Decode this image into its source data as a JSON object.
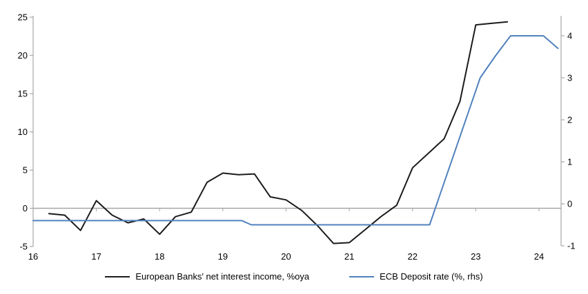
{
  "chart_data": {
    "type": "line",
    "title": "",
    "xlabel": "",
    "ylabel_left": "",
    "ylabel_right": "",
    "grid": "zero-line-only",
    "legend_position": "bottom-center",
    "x_axis": {
      "ticks": [
        "16",
        "17",
        "18",
        "19",
        "20",
        "21",
        "22",
        "23",
        "24"
      ],
      "tick_values": [
        16,
        17,
        18,
        19,
        20,
        21,
        22,
        23,
        24
      ],
      "range": [
        16,
        24.4
      ]
    },
    "left_axis": {
      "ticks": [
        "25",
        "20",
        "15",
        "10",
        "5",
        "0",
        "-5"
      ],
      "tick_values": [
        25,
        20,
        15,
        10,
        5,
        0,
        -5
      ],
      "range": [
        -5,
        25
      ]
    },
    "right_axis": {
      "ticks": [
        "4",
        "3",
        "2",
        "1",
        "0",
        "-1"
      ],
      "tick_values": [
        4,
        3,
        2,
        1,
        0,
        -1
      ],
      "range": [
        -1.02,
        4.44
      ]
    },
    "series": [
      {
        "name": "European Banks' net interest income, %oya",
        "axis": "left",
        "color": "#1a1a1a",
        "points": [
          [
            16.25,
            -0.7
          ],
          [
            16.5,
            -0.9
          ],
          [
            16.75,
            -2.9
          ],
          [
            17.0,
            1.0
          ],
          [
            17.25,
            -0.9
          ],
          [
            17.5,
            -1.9
          ],
          [
            17.75,
            -1.4
          ],
          [
            18.0,
            -3.4
          ],
          [
            18.25,
            -1.1
          ],
          [
            18.5,
            -0.5
          ],
          [
            18.75,
            3.4
          ],
          [
            19.0,
            4.6
          ],
          [
            19.25,
            4.4
          ],
          [
            19.5,
            4.5
          ],
          [
            19.75,
            1.5
          ],
          [
            20.0,
            1.1
          ],
          [
            20.25,
            -0.3
          ],
          [
            20.5,
            -2.3
          ],
          [
            20.75,
            -4.6
          ],
          [
            21.0,
            -4.5
          ],
          [
            21.25,
            -2.8
          ],
          [
            21.5,
            -1.1
          ],
          [
            21.75,
            0.4
          ],
          [
            22.0,
            5.3
          ],
          [
            22.25,
            7.2
          ],
          [
            22.5,
            9.1
          ],
          [
            22.75,
            14.0
          ],
          [
            23.0,
            24.0
          ],
          [
            23.25,
            24.2
          ],
          [
            23.5,
            24.4
          ]
        ]
      },
      {
        "name": "ECB Deposit rate (%, rhs)",
        "axis": "right",
        "color": "#4f81bd",
        "points": [
          [
            16.0,
            -0.4
          ],
          [
            19.3,
            -0.4
          ],
          [
            19.45,
            -0.5
          ],
          [
            22.27,
            -0.5
          ],
          [
            23.07,
            3.0
          ],
          [
            23.3,
            3.5
          ],
          [
            23.55,
            4.0
          ],
          [
            24.07,
            4.0
          ],
          [
            24.3,
            3.7
          ]
        ]
      }
    ]
  },
  "colors": {
    "axis": "#a6a6a6",
    "zero_line": "#a6a6a6",
    "tick_label": "#000000",
    "series_nii": "#1a1a1a",
    "series_ecb": "#4f81bd",
    "background": "#ffffff"
  },
  "legend": {
    "items": [
      {
        "label": "European Banks' net interest income, %oya"
      },
      {
        "label": "ECB Deposit rate (%, rhs)"
      }
    ]
  }
}
